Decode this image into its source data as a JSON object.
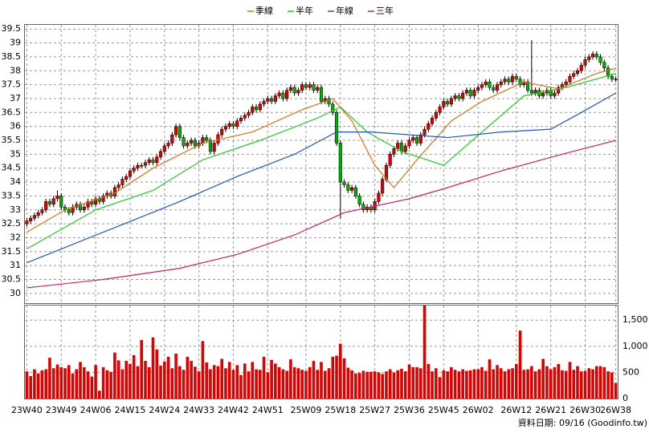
{
  "chart_data": [
    {
      "type": "candlestick",
      "legend": "top",
      "grid": true,
      "up_color": "#e00000",
      "down_color": "#00b000",
      "ylim": [
        29.65,
        39.65
      ],
      "yticks": [
        30,
        30.5,
        31,
        31.5,
        32,
        32.5,
        33,
        33.5,
        34,
        34.5,
        35,
        35.5,
        36,
        36.5,
        37,
        37.5,
        38,
        38.5,
        39,
        39.5
      ],
      "open": [
        32.5,
        32.6,
        32.7,
        32.8,
        32.9,
        33.0,
        33.3,
        33.2,
        33.4,
        33.5,
        33.1,
        33.0,
        32.9,
        33.1,
        33.2,
        33.0,
        33.1,
        33.3,
        33.2,
        33.4,
        33.3,
        33.5,
        33.6,
        33.5,
        33.8,
        33.9,
        34.1,
        34.2,
        34.4,
        34.5,
        34.6,
        34.6,
        34.7,
        34.8,
        34.7,
        34.9,
        35.1,
        35.3,
        35.4,
        35.7,
        36.0,
        35.6,
        35.3,
        35.4,
        35.5,
        35.3,
        35.4,
        35.6,
        35.5,
        35.1,
        35.4,
        35.7,
        35.9,
        36.0,
        36.1,
        36.0,
        36.2,
        36.3,
        36.4,
        36.5,
        36.7,
        36.6,
        36.8,
        36.9,
        37.0,
        36.9,
        37.1,
        37.2,
        37.0,
        37.3,
        37.4,
        37.2,
        37.3,
        37.5,
        37.4,
        37.5,
        37.3,
        37.4,
        36.9,
        37.0,
        36.8,
        36.5,
        35.4,
        34.0,
        33.9,
        33.7,
        33.8,
        33.5,
        33.2,
        33.0,
        33.1,
        33.0,
        33.3,
        33.6,
        34.1,
        34.6,
        35.0,
        35.2,
        35.4,
        35.1,
        35.3,
        35.5,
        35.6,
        35.4,
        35.7,
        35.9,
        36.1,
        36.3,
        36.5,
        36.7,
        36.9,
        36.8,
        37.0,
        37.1,
        37.0,
        37.2,
        37.3,
        37.1,
        37.3,
        37.4,
        37.5,
        37.6,
        37.4,
        37.3,
        37.5,
        37.6,
        37.7,
        37.6,
        37.8,
        37.7,
        37.5,
        37.6,
        37.3,
        37.2,
        37.3,
        37.1,
        37.2,
        37.3,
        37.1,
        37.2,
        37.4,
        37.5,
        37.6,
        37.8,
        37.9,
        38.0,
        38.2,
        38.4,
        38.5,
        38.6,
        38.5,
        38.3,
        38.1,
        37.8,
        37.7
      ],
      "high": [
        32.7,
        32.8,
        32.9,
        33.0,
        33.1,
        33.4,
        33.4,
        33.5,
        33.7,
        33.6,
        33.2,
        33.1,
        33.2,
        33.3,
        33.3,
        33.2,
        33.4,
        33.4,
        33.5,
        33.5,
        33.6,
        33.7,
        33.7,
        33.9,
        34.0,
        34.2,
        34.3,
        34.5,
        34.6,
        34.7,
        34.7,
        34.8,
        34.9,
        34.9,
        35.0,
        35.2,
        35.4,
        35.5,
        35.8,
        36.1,
        36.1,
        35.7,
        35.5,
        35.6,
        35.6,
        35.5,
        35.7,
        35.7,
        35.6,
        35.5,
        35.8,
        36.0,
        36.1,
        36.2,
        36.2,
        36.3,
        36.4,
        36.5,
        36.6,
        36.8,
        36.8,
        36.9,
        37.0,
        37.1,
        37.1,
        37.2,
        37.3,
        37.3,
        37.4,
        37.5,
        37.5,
        37.4,
        37.6,
        37.6,
        37.6,
        37.6,
        37.5,
        37.5,
        37.1,
        37.1,
        36.9,
        36.6,
        35.5,
        34.1,
        34.0,
        33.9,
        33.9,
        33.6,
        33.3,
        33.2,
        33.2,
        33.4,
        33.7,
        34.2,
        34.7,
        35.1,
        35.3,
        35.5,
        35.5,
        35.4,
        35.6,
        35.7,
        35.7,
        35.8,
        36.0,
        36.2,
        36.4,
        36.6,
        36.8,
        37.0,
        37.0,
        37.1,
        37.2,
        37.2,
        37.3,
        37.4,
        37.4,
        37.4,
        37.5,
        37.6,
        37.7,
        37.7,
        37.5,
        37.6,
        37.7,
        37.8,
        37.8,
        37.9,
        37.9,
        37.8,
        37.7,
        37.7,
        39.1,
        37.4,
        37.4,
        37.3,
        37.4,
        37.4,
        37.3,
        37.5,
        37.6,
        37.7,
        37.9,
        38.0,
        38.1,
        38.3,
        38.5,
        38.6,
        38.7,
        38.7,
        38.6,
        38.4,
        38.2,
        37.9,
        37.8
      ],
      "low": [
        32.4,
        32.5,
        32.6,
        32.7,
        32.8,
        32.9,
        33.1,
        33.1,
        33.3,
        33.0,
        32.9,
        32.8,
        32.8,
        33.0,
        32.9,
        32.9,
        33.0,
        33.1,
        33.1,
        33.2,
        33.2,
        33.4,
        33.4,
        33.4,
        33.7,
        33.8,
        34.0,
        34.1,
        34.3,
        34.4,
        34.5,
        34.5,
        34.6,
        34.6,
        34.6,
        34.8,
        35.0,
        35.2,
        35.3,
        35.6,
        35.5,
        35.2,
        35.2,
        35.3,
        35.2,
        35.2,
        35.3,
        35.4,
        35.0,
        35.0,
        35.3,
        35.6,
        35.8,
        35.9,
        35.9,
        35.9,
        36.1,
        36.2,
        36.3,
        36.4,
        36.5,
        36.5,
        36.7,
        36.8,
        36.8,
        36.8,
        37.0,
        36.9,
        36.9,
        37.2,
        37.1,
        37.1,
        37.2,
        37.3,
        37.3,
        37.2,
        37.2,
        36.8,
        36.8,
        36.7,
        36.4,
        35.3,
        32.7,
        33.8,
        33.6,
        33.6,
        33.4,
        33.1,
        32.9,
        32.9,
        32.9,
        32.9,
        33.2,
        33.5,
        34.0,
        34.5,
        34.9,
        35.1,
        35.0,
        35.0,
        35.2,
        35.4,
        35.3,
        35.3,
        35.6,
        35.8,
        36.0,
        36.2,
        36.4,
        36.6,
        36.7,
        36.7,
        36.9,
        36.9,
        36.9,
        37.1,
        37.0,
        37.0,
        37.2,
        37.3,
        37.4,
        37.3,
        37.2,
        37.2,
        37.4,
        37.5,
        37.5,
        37.5,
        37.6,
        37.4,
        37.4,
        37.2,
        37.1,
        37.1,
        37.0,
        37.0,
        37.1,
        37.0,
        37.0,
        37.1,
        37.3,
        37.4,
        37.5,
        37.7,
        37.8,
        37.9,
        38.1,
        38.3,
        38.4,
        38.4,
        38.2,
        38.0,
        37.7,
        37.6,
        37.6
      ],
      "close": [
        32.6,
        32.7,
        32.8,
        32.9,
        33.0,
        33.3,
        33.2,
        33.4,
        33.5,
        33.1,
        33.0,
        32.9,
        33.1,
        33.2,
        33.0,
        33.1,
        33.3,
        33.2,
        33.4,
        33.3,
        33.5,
        33.6,
        33.5,
        33.8,
        33.9,
        34.1,
        34.2,
        34.4,
        34.5,
        34.6,
        34.6,
        34.7,
        34.8,
        34.7,
        34.9,
        35.1,
        35.3,
        35.4,
        35.7,
        36.0,
        35.6,
        35.3,
        35.4,
        35.5,
        35.3,
        35.4,
        35.6,
        35.5,
        35.1,
        35.4,
        35.7,
        35.9,
        36.0,
        36.1,
        36.0,
        36.2,
        36.3,
        36.4,
        36.5,
        36.7,
        36.6,
        36.8,
        36.9,
        37.0,
        36.9,
        37.1,
        37.2,
        37.0,
        37.3,
        37.4,
        37.2,
        37.3,
        37.5,
        37.4,
        37.5,
        37.3,
        37.4,
        36.9,
        37.0,
        36.8,
        36.5,
        35.4,
        34.0,
        33.9,
        33.7,
        33.8,
        33.5,
        33.2,
        33.0,
        33.1,
        33.0,
        33.3,
        33.6,
        34.1,
        34.6,
        35.0,
        35.2,
        35.4,
        35.1,
        35.3,
        35.5,
        35.6,
        35.4,
        35.7,
        35.9,
        36.1,
        36.3,
        36.5,
        36.7,
        36.9,
        36.8,
        37.0,
        37.1,
        37.0,
        37.2,
        37.3,
        37.1,
        37.3,
        37.4,
        37.5,
        37.6,
        37.4,
        37.3,
        37.5,
        37.6,
        37.7,
        37.6,
        37.8,
        37.7,
        37.5,
        37.6,
        37.3,
        37.2,
        37.3,
        37.1,
        37.2,
        37.3,
        37.1,
        37.2,
        37.4,
        37.5,
        37.6,
        37.8,
        37.9,
        38.0,
        38.2,
        38.4,
        38.5,
        38.6,
        38.5,
        38.3,
        38.1,
        37.8,
        37.7,
        37.7
      ],
      "series": [
        {
          "name": "季線",
          "color": "#e0701a",
          "x": [
            0,
            10,
            23,
            33,
            46,
            59,
            72,
            80,
            85,
            91,
            96,
            102,
            111,
            119,
            130,
            139,
            149,
            154
          ],
          "values": [
            32.2,
            33.0,
            33.6,
            34.5,
            35.4,
            35.8,
            36.6,
            37.0,
            36.2,
            34.6,
            33.8,
            34.8,
            36.2,
            36.9,
            37.6,
            37.35,
            37.9,
            38.1
          ]
        },
        {
          "name": "半年",
          "color": "#22cc22",
          "x": [
            0,
            18,
            33,
            46,
            61,
            76,
            82,
            89,
            98,
            109,
            119,
            130,
            141,
            154
          ],
          "values": [
            31.6,
            33.0,
            33.7,
            34.8,
            35.5,
            36.3,
            36.7,
            35.8,
            35.1,
            34.6,
            35.8,
            37.1,
            37.4,
            37.9
          ]
        },
        {
          "name": "年線",
          "color": "#1f55c8",
          "x": [
            0,
            20,
            40,
            55,
            70,
            81,
            90,
            110,
            124,
            137,
            145,
            154
          ],
          "values": [
            31.1,
            32.2,
            33.3,
            34.2,
            35.0,
            35.8,
            35.8,
            35.6,
            35.8,
            35.9,
            36.5,
            37.2
          ]
        },
        {
          "name": "三年",
          "color": "#cc1f6a",
          "x": [
            0,
            20,
            40,
            55,
            70,
            83,
            100,
            110,
            124,
            140,
            154
          ],
          "values": [
            30.2,
            30.5,
            30.9,
            31.4,
            32.1,
            32.9,
            33.4,
            33.8,
            34.4,
            35.0,
            35.5
          ]
        }
      ]
    },
    {
      "type": "bar",
      "color": "#e00000",
      "grid": true,
      "ylim": [
        0,
        1780
      ],
      "yticks": [
        0,
        500,
        {
          "value": 1000,
          "label": "1,000"
        },
        {
          "value": 1500,
          "label": "1,500"
        }
      ],
      "categories": [
        "23W40",
        null,
        null,
        null,
        null,
        null,
        null,
        null,
        null,
        "23W49",
        null,
        null,
        null,
        null,
        null,
        null,
        null,
        null,
        "24W06",
        null,
        null,
        null,
        null,
        null,
        null,
        null,
        null,
        "24W15",
        null,
        null,
        null,
        null,
        null,
        null,
        null,
        null,
        "24W24",
        null,
        null,
        null,
        null,
        null,
        null,
        null,
        null,
        "24W33",
        null,
        null,
        null,
        null,
        null,
        null,
        null,
        null,
        "24W42",
        null,
        null,
        null,
        null,
        null,
        null,
        null,
        null,
        "24W51",
        null,
        null,
        null,
        null,
        null,
        null,
        null,
        null,
        null,
        "25W09",
        null,
        null,
        null,
        null,
        null,
        null,
        null,
        null,
        "25W18",
        null,
        null,
        null,
        null,
        null,
        null,
        null,
        null,
        "25W27",
        null,
        null,
        null,
        null,
        null,
        null,
        null,
        null,
        "25W36",
        null,
        null,
        null,
        null,
        null,
        null,
        null,
        null,
        "25W45",
        null,
        null,
        null,
        null,
        null,
        null,
        null,
        null,
        "26W02",
        null,
        null,
        null,
        null,
        null,
        null,
        null,
        null,
        null,
        "26W12",
        null,
        null,
        null,
        null,
        null,
        null,
        null,
        null,
        "26W21",
        null,
        null,
        null,
        null,
        null,
        null,
        null,
        null,
        "26W30",
        null,
        null,
        null,
        null,
        null,
        null,
        null,
        "26W38"
      ],
      "values": [
        520,
        430,
        560,
        480,
        540,
        560,
        780,
        580,
        650,
        600,
        580,
        640,
        480,
        560,
        700,
        600,
        520,
        420,
        640,
        150,
        600,
        540,
        510,
        880,
        730,
        560,
        720,
        660,
        830,
        620,
        1120,
        720,
        600,
        1170,
        940,
        630,
        710,
        800,
        580,
        860,
        620,
        550,
        800,
        720,
        610,
        520,
        1100,
        690,
        560,
        640,
        620,
        760,
        580,
        700,
        550,
        640,
        450,
        670,
        520,
        700,
        560,
        550,
        800,
        500,
        740,
        670,
        600,
        560,
        530,
        750,
        600,
        580,
        550,
        530,
        600,
        720,
        550,
        700,
        530,
        580,
        800,
        820,
        1050,
        770,
        590,
        540,
        480,
        490,
        530,
        510,
        510,
        520,
        500,
        470,
        520,
        560,
        500,
        540,
        570,
        520,
        650,
        600,
        600,
        580,
        1780,
        660,
        520,
        580,
        410,
        540,
        520,
        600,
        550,
        520,
        560,
        530,
        540,
        560,
        560,
        600,
        530,
        750,
        560,
        640,
        580,
        520,
        560,
        580,
        660,
        1300,
        550,
        560,
        620,
        520,
        560,
        760,
        620,
        560,
        600,
        660,
        540,
        530,
        700,
        550,
        620,
        520,
        530,
        580,
        560,
        620,
        620,
        600,
        520,
        500,
        300
      ]
    }
  ],
  "source": "資料日期: 09/16  (Goodinfo.tw)"
}
